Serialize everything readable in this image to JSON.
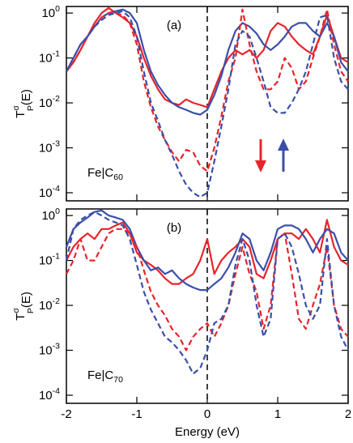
{
  "chart_data": [
    {
      "type": "line",
      "panel_label": "(a)",
      "annotation": "Fe|C_60",
      "ylabel": "T^σ_P(E)",
      "log_y": true,
      "xlim": [
        -2,
        2
      ],
      "ylim": [
        6.6e-05,
        1.4
      ],
      "yticks": [
        {
          "value": 1,
          "label": "10^0"
        },
        {
          "value": 0.1,
          "label": "10^-1"
        },
        {
          "value": 0.01,
          "label": "10^-2"
        },
        {
          "value": 0.001,
          "label": "10^-3"
        },
        {
          "value": 0.0001,
          "label": "10^-4"
        }
      ],
      "x": [
        -2,
        -1.9,
        -1.8,
        -1.7,
        -1.6,
        -1.5,
        -1.4,
        -1.3,
        -1.2,
        -1.1,
        -1,
        -0.9,
        -0.8,
        -0.7,
        -0.6,
        -0.5,
        -0.4,
        -0.3,
        -0.2,
        -0.1,
        0,
        0.1,
        0.2,
        0.3,
        0.4,
        0.5,
        0.6,
        0.7,
        0.8,
        0.9,
        1,
        1.1,
        1.2,
        1.3,
        1.4,
        1.5,
        1.6,
        1.7,
        1.8,
        1.9,
        2
      ],
      "series": [
        {
          "color": "#e8242b",
          "dash": false,
          "values": [
            0.05,
            0.08,
            0.15,
            0.3,
            0.6,
            1.0,
            1.3,
            1.0,
            0.8,
            0.6,
            0.3,
            0.1,
            0.04,
            0.02,
            0.012,
            0.01,
            0.009,
            0.012,
            0.01,
            0.009,
            0.008,
            0.02,
            0.05,
            0.1,
            0.15,
            0.12,
            0.15,
            0.1,
            0.15,
            0.4,
            0.6,
            0.5,
            0.3,
            0.2,
            0.15,
            0.12,
            0.3,
            0.9,
            0.3,
            0.1,
            0.08
          ]
        },
        {
          "color": "#3b4fa8",
          "dash": false,
          "values": [
            0.05,
            0.1,
            0.2,
            0.3,
            0.5,
            0.8,
            1.0,
            1.1,
            1.2,
            1.0,
            0.6,
            0.15,
            0.05,
            0.025,
            0.015,
            0.01,
            0.008,
            0.007,
            0.006,
            0.0055,
            0.007,
            0.015,
            0.04,
            0.15,
            0.4,
            0.6,
            0.5,
            0.35,
            0.2,
            0.15,
            0.2,
            0.3,
            0.5,
            0.6,
            0.6,
            0.4,
            0.3,
            0.6,
            0.3,
            0.08,
            0.05
          ]
        },
        {
          "color": "#e8242b",
          "dash": true,
          "values": [
            0.05,
            0.08,
            0.15,
            0.3,
            0.5,
            0.8,
            1.0,
            1.0,
            0.9,
            0.6,
            0.2,
            0.03,
            0.008,
            0.003,
            0.0015,
            0.0008,
            0.0005,
            0.0009,
            0.0008,
            0.0004,
            0.0003,
            0.001,
            0.005,
            0.03,
            0.1,
            1.2,
            0.2,
            0.05,
            0.02,
            0.02,
            0.03,
            0.1,
            0.06,
            0.02,
            0.03,
            0.1,
            0.3,
            1.2,
            0.2,
            0.05,
            0.03
          ]
        },
        {
          "color": "#3b4fa8",
          "dash": true,
          "values": [
            0.05,
            0.1,
            0.2,
            0.3,
            0.5,
            0.7,
            0.9,
            1.0,
            1.1,
            0.8,
            0.3,
            0.05,
            0.01,
            0.004,
            0.0015,
            0.0007,
            0.0003,
            0.00015,
            0.0001,
            8e-05,
            0.0001,
            0.0005,
            0.003,
            0.02,
            0.2,
            0.4,
            0.3,
            0.1,
            0.03,
            0.008,
            0.006,
            0.006,
            0.01,
            0.02,
            0.05,
            0.2,
            0.8,
            0.9,
            0.1,
            0.03,
            0.02
          ]
        }
      ]
    },
    {
      "type": "line",
      "panel_label": "(b)",
      "annotation": "Fe|C_70",
      "ylabel": "T^σ_P(E)",
      "xlabel": "Energy (eV)",
      "log_y": true,
      "xlim": [
        -2,
        2
      ],
      "xticks": [
        -2,
        -1,
        0,
        1,
        2
      ],
      "ylim": [
        6.6e-05,
        1.4
      ],
      "yticks": [
        {
          "value": 1,
          "label": "10^0"
        },
        {
          "value": 0.1,
          "label": "10^-1"
        },
        {
          "value": 0.01,
          "label": "10^-2"
        },
        {
          "value": 0.001,
          "label": "10^-3"
        },
        {
          "value": 0.0001,
          "label": "10^-4"
        }
      ],
      "x": [
        -2,
        -1.9,
        -1.8,
        -1.7,
        -1.6,
        -1.5,
        -1.4,
        -1.3,
        -1.2,
        -1.1,
        -1,
        -0.9,
        -0.8,
        -0.7,
        -0.6,
        -0.5,
        -0.4,
        -0.3,
        -0.2,
        -0.1,
        0,
        0.1,
        0.2,
        0.3,
        0.4,
        0.5,
        0.6,
        0.7,
        0.8,
        0.9,
        1,
        1.1,
        1.2,
        1.3,
        1.4,
        1.5,
        1.6,
        1.7,
        1.8,
        1.9,
        2
      ],
      "series": [
        {
          "color": "#e8242b",
          "dash": false,
          "values": [
            0.1,
            0.2,
            0.3,
            0.4,
            0.3,
            0.5,
            0.5,
            0.6,
            0.7,
            0.4,
            0.15,
            0.1,
            0.08,
            0.06,
            0.04,
            0.03,
            0.03,
            0.04,
            0.05,
            0.1,
            0.3,
            0.05,
            0.1,
            0.15,
            0.2,
            0.3,
            0.2,
            0.05,
            0.04,
            0.1,
            0.3,
            0.4,
            0.4,
            0.3,
            0.5,
            0.3,
            0.15,
            0.8,
            0.2,
            0.1,
            0.08
          ]
        },
        {
          "color": "#3b4fa8",
          "dash": false,
          "values": [
            0.2,
            0.5,
            0.7,
            0.9,
            1.2,
            1.3,
            1.0,
            0.9,
            0.8,
            0.5,
            0.2,
            0.1,
            0.06,
            0.07,
            0.05,
            0.06,
            0.04,
            0.03,
            0.025,
            0.022,
            0.022,
            0.03,
            0.04,
            0.07,
            0.15,
            0.4,
            0.3,
            0.1,
            0.06,
            0.15,
            0.5,
            0.6,
            0.6,
            0.5,
            0.3,
            0.15,
            0.3,
            0.5,
            0.4,
            0.15,
            0.1
          ]
        },
        {
          "color": "#e8242b",
          "dash": true,
          "values": [
            0.05,
            0.1,
            0.3,
            0.1,
            0.1,
            0.2,
            0.4,
            0.5,
            0.5,
            0.4,
            0.2,
            0.06,
            0.02,
            0.01,
            0.006,
            0.003,
            0.002,
            0.001,
            0.002,
            0.003,
            0.004,
            0.002,
            0.004,
            0.01,
            0.05,
            0.2,
            0.05,
            0.02,
            0.003,
            0.01,
            0.3,
            0.4,
            0.05,
            0.005,
            0.003,
            0.01,
            0.03,
            0.2,
            0.01,
            0.003,
            0.002
          ]
        },
        {
          "color": "#3b4fa8",
          "dash": true,
          "values": [
            0.1,
            0.5,
            0.8,
            1.0,
            1.2,
            1.0,
            0.8,
            0.7,
            0.6,
            0.3,
            0.08,
            0.02,
            0.008,
            0.004,
            0.002,
            0.0015,
            0.001,
            0.0006,
            0.0003,
            0.0004,
            0.001,
            0.004,
            0.005,
            0.01,
            0.08,
            0.3,
            0.1,
            0.01,
            0.002,
            0.005,
            0.3,
            0.4,
            0.2,
            0.05,
            0.01,
            0.005,
            0.01,
            0.3,
            0.01,
            0.002,
            0.001
          ]
        }
      ]
    }
  ]
}
